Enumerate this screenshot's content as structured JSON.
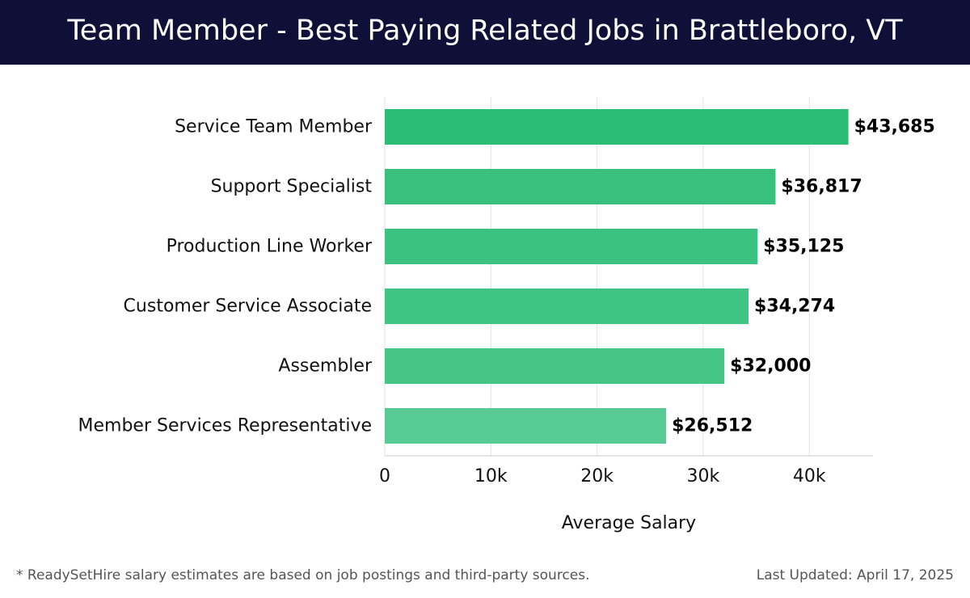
{
  "header": {
    "title": "Team Member - Best Paying Related Jobs in Brattleboro, VT"
  },
  "chart_data": {
    "type": "bar",
    "orientation": "horizontal",
    "categories": [
      "Service Team Member",
      "Support Specialist",
      "Production Line Worker",
      "Customer Service Associate",
      "Assembler",
      "Member Services Representative"
    ],
    "values": [
      43685,
      36817,
      35125,
      34274,
      32000,
      26512
    ],
    "value_labels": [
      "$43,685",
      "$36,817",
      "$35,125",
      "$34,274",
      "$32,000",
      "$26,512"
    ],
    "xlabel": "Average Salary",
    "ylabel": "",
    "xlim": [
      0,
      46000
    ],
    "x_ticks": [
      0,
      10000,
      20000,
      30000,
      40000
    ],
    "x_tick_labels": [
      "0",
      "10k",
      "20k",
      "30k",
      "40k"
    ],
    "grid": true,
    "colors": [
      "#2bbd73",
      "#38c07c",
      "#3cc280",
      "#40c483",
      "#45c586",
      "#57cb93"
    ]
  },
  "footer": {
    "note": "* ReadySetHire salary estimates are based on job postings and third-party sources.",
    "updated": "Last Updated: April 17, 2025"
  }
}
